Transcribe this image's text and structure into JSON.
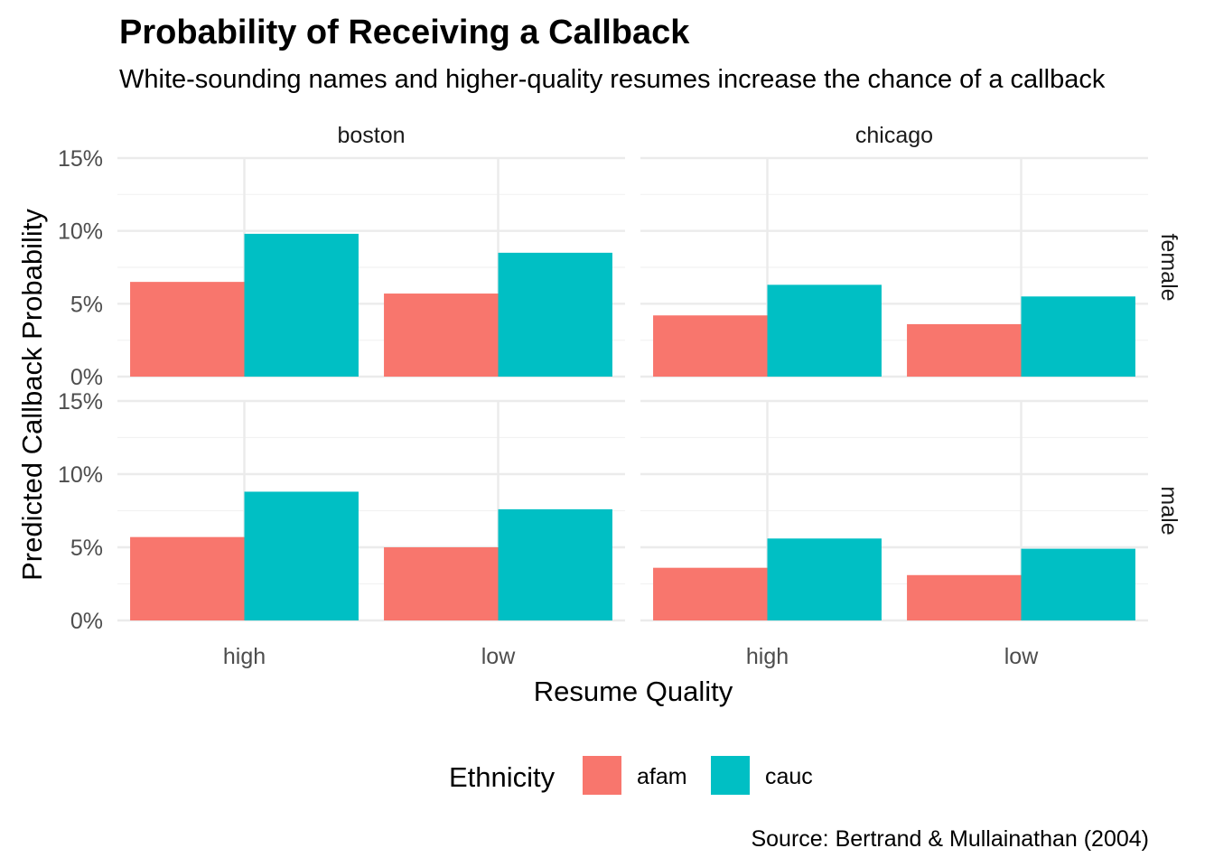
{
  "chart_data": {
    "type": "bar",
    "title": "Probability of Receiving a Callback",
    "subtitle": "White-sounding names and higher-quality resumes increase the chance of a callback",
    "xlabel": "Resume Quality",
    "ylabel": "Predicted Callback Probability",
    "caption": "Source: Bertrand & Mullainathan (2004)",
    "ylim": [
      0,
      0.15
    ],
    "y_ticks": [
      0,
      0.05,
      0.1,
      0.15
    ],
    "y_tick_labels": [
      "0%",
      "5%",
      "10%",
      "15%"
    ],
    "categories": [
      "high",
      "low"
    ],
    "facet_cols": [
      "boston",
      "chicago"
    ],
    "facet_rows": [
      "female",
      "male"
    ],
    "legend": {
      "title": "Ethnicity",
      "position": "bottom",
      "entries": [
        {
          "name": "afam",
          "color": "#F8766D"
        },
        {
          "name": "cauc",
          "color": "#00BFC4"
        }
      ]
    },
    "grid": true,
    "panels": [
      {
        "col": "boston",
        "row": "female",
        "series": [
          {
            "name": "afam",
            "values": [
              0.065,
              0.057
            ]
          },
          {
            "name": "cauc",
            "values": [
              0.098,
              0.085
            ]
          }
        ]
      },
      {
        "col": "chicago",
        "row": "female",
        "series": [
          {
            "name": "afam",
            "values": [
              0.042,
              0.036
            ]
          },
          {
            "name": "cauc",
            "values": [
              0.063,
              0.055
            ]
          }
        ]
      },
      {
        "col": "boston",
        "row": "male",
        "series": [
          {
            "name": "afam",
            "values": [
              0.057,
              0.05
            ]
          },
          {
            "name": "cauc",
            "values": [
              0.088,
              0.076
            ]
          }
        ]
      },
      {
        "col": "chicago",
        "row": "male",
        "series": [
          {
            "name": "afam",
            "values": [
              0.036,
              0.031
            ]
          },
          {
            "name": "cauc",
            "values": [
              0.056,
              0.049
            ]
          }
        ]
      }
    ]
  }
}
